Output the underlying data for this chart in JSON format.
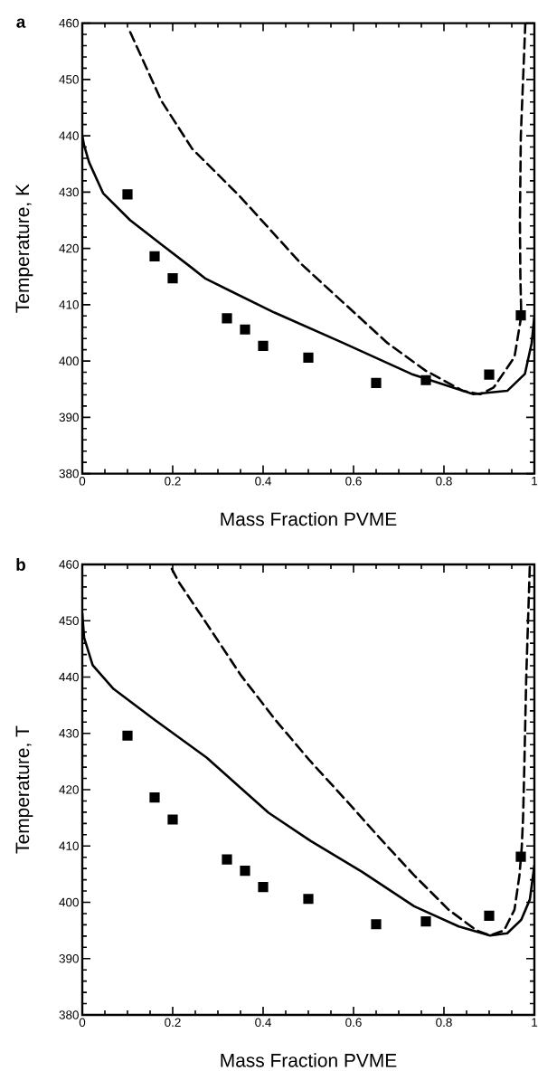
{
  "chart_data": [
    {
      "type": "line",
      "title": "a",
      "xlabel": "Mass Fraction PVME",
      "ylabel": "Temperature, K",
      "xlim": [
        0,
        1
      ],
      "ylim": [
        380,
        460
      ],
      "xticks": [
        0,
        0.2,
        0.4,
        0.6,
        0.8,
        1
      ],
      "yticks": [
        380,
        390,
        400,
        410,
        420,
        430,
        440,
        450,
        460
      ],
      "series": [
        {
          "type": "line",
          "color": "#000000",
          "line_style": "solid",
          "marker": "none",
          "x": [
            0,
            0.004,
            0.015,
            0.046,
            0.106,
            0.175,
            0.243,
            0.273,
            0.425,
            0.577,
            0.728,
            0.865,
            0.94,
            0.979,
            0.994,
            1.0
          ],
          "values": [
            440,
            438.3,
            435.3,
            429.8,
            425,
            420.7,
            416.5,
            414.6,
            408.6,
            403.2,
            397.7,
            394.1,
            394.7,
            397.7,
            403.2,
            408
          ]
        },
        {
          "type": "line",
          "color": "#000000",
          "line_style": "dashed",
          "marker": "none",
          "x": [
            0.106,
            0.175,
            0.243,
            0.349,
            0.486,
            0.577,
            0.675,
            0.759,
            0.842,
            0.88,
            0.91,
            0.956,
            0.971,
            0.969,
            0.968,
            0.97,
            0.975,
            0.98
          ],
          "values": [
            458.4,
            446.2,
            437.7,
            429.2,
            417.1,
            410.4,
            403.2,
            398.3,
            394.7,
            394.1,
            395.3,
            400.7,
            408,
            415,
            425,
            440,
            450,
            460
          ]
        },
        {
          "type": "scatter",
          "color": "#000000",
          "marker": "square",
          "x": [
            0.1,
            0.16,
            0.2,
            0.32,
            0.36,
            0.4,
            0.5,
            0.65,
            0.76,
            0.9,
            0.97
          ],
          "values": [
            429.6,
            418.6,
            414.7,
            407.6,
            405.6,
            402.7,
            400.6,
            396.1,
            396.6,
            397.6,
            408.1
          ]
        }
      ]
    },
    {
      "type": "line",
      "title": "b",
      "xlabel": "Mass Fraction PVME",
      "ylabel": "Temperature, T",
      "xlim": [
        0,
        1
      ],
      "ylim": [
        380,
        460
      ],
      "xticks": [
        0,
        0.2,
        0.4,
        0.6,
        0.8,
        1
      ],
      "yticks": [
        380,
        390,
        400,
        410,
        420,
        430,
        440,
        450,
        460
      ],
      "series": [
        {
          "type": "line",
          "color": "#000000",
          "line_style": "solid",
          "marker": "none",
          "x": [
            0,
            0.004,
            0.023,
            0.069,
            0.16,
            0.275,
            0.412,
            0.505,
            0.619,
            0.734,
            0.833,
            0.902,
            0.94,
            0.971,
            0.99,
            1.0
          ],
          "values": [
            451.3,
            447,
            442.1,
            437.9,
            432.4,
            425.7,
            415.9,
            410.9,
            405.4,
            399.3,
            395.7,
            394.1,
            394.5,
            396.9,
            400.5,
            406.6
          ]
        },
        {
          "type": "line",
          "color": "#000000",
          "line_style": "dashed",
          "marker": "none",
          "x": [
            0.198,
            0.214,
            0.275,
            0.351,
            0.427,
            0.504,
            0.595,
            0.657,
            0.734,
            0.81,
            0.872,
            0.902,
            0.933,
            0.956,
            0.967,
            0.972,
            0.975,
            0.978,
            0.982,
            0.988,
            0.99
          ],
          "values": [
            459.2,
            456.8,
            449.5,
            440.3,
            432.4,
            425.1,
            417.1,
            411.5,
            404.8,
            398.7,
            395,
            394.1,
            395,
            398.7,
            404.8,
            409.7,
            415,
            425,
            440,
            455,
            460
          ]
        },
        {
          "type": "scatter",
          "color": "#000000",
          "marker": "square",
          "x": [
            0.1,
            0.16,
            0.2,
            0.32,
            0.36,
            0.4,
            0.5,
            0.65,
            0.76,
            0.9,
            0.97
          ],
          "values": [
            429.6,
            418.6,
            414.7,
            407.6,
            405.6,
            402.7,
            400.6,
            396.1,
            396.6,
            397.6,
            408.1
          ]
        }
      ]
    }
  ]
}
